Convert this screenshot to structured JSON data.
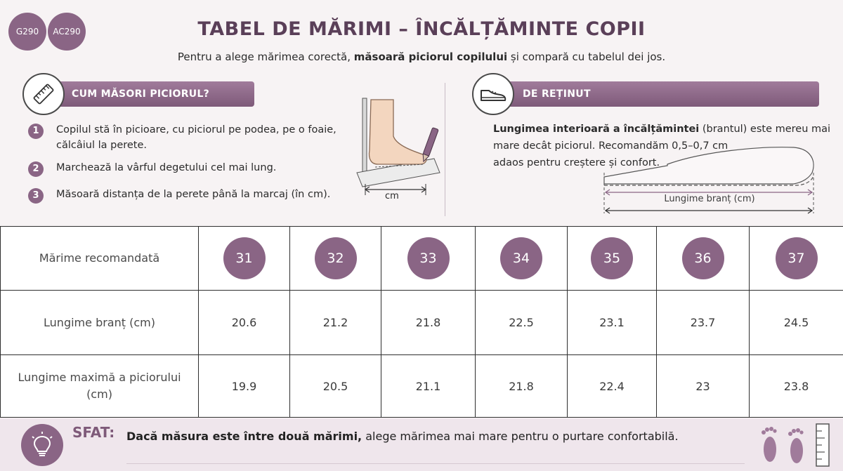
{
  "header": {
    "badges": [
      "G290",
      "AC290"
    ],
    "title": "TABEL DE MĂRIMI – ÎNCĂLȚĂMINTE COPII",
    "subtitle_pre": "Pentru a alege mărimea corectă, ",
    "subtitle_bold": "măsoară piciorul copilului",
    "subtitle_post": " și compară cu tabelul dei jos."
  },
  "measure": {
    "heading": "CUM MĂSORI PICIORUL?",
    "icon": "ruler-icon",
    "steps": [
      {
        "num": "1",
        "line1": "Copilul stă în picioare, cu piciorul pe podea, pe o foaie,",
        "line2": "călcâiul la perete."
      },
      {
        "num": "2",
        "line1": "Marchează la vârful degetului cel mai lung.",
        "line2": ""
      },
      {
        "num": "3",
        "line1": "Măsoară distanța de la perete până la marcaj (în cm).",
        "line2": ""
      }
    ],
    "illustration_unit": "cm"
  },
  "remember": {
    "heading": "DE REȚINUT",
    "icon": "shoe-icon",
    "bold": "Lungimea interioară a încălțămintei",
    "line1_rest": " (brantul) este mereu mai",
    "line2": "mare decât piciorul. Recomandăm 0,5–0,7 cm",
    "line3": "adaos pentru creștere și confort.",
    "insole_label": "Lungime branț (cm)"
  },
  "table": {
    "row_labels": [
      "Mărime recomandată",
      "Lungime branț (cm)",
      "Lungime maximă a piciorului (cm)"
    ],
    "sizes": [
      "31",
      "32",
      "33",
      "34",
      "35",
      "36",
      "37"
    ],
    "insole_length": [
      "20.6",
      "21.2",
      "21.8",
      "22.5",
      "23.1",
      "23.7",
      "24.5"
    ],
    "max_foot_length": [
      "19.9",
      "20.5",
      "21.1",
      "21.8",
      "22.4",
      "23",
      "23.8"
    ]
  },
  "tip": {
    "label": "SFAT:",
    "bold": "Dacă măsura este între două mărimi,",
    "rest": " alege mărimea mai mare pentru o purtare confortabilă.",
    "icons": [
      "lightbulb-icon",
      "footprints-icon",
      "ruler-icon"
    ]
  },
  "colors": {
    "accent": "#8a6585",
    "title": "#5a3f58",
    "banner_top": "#a07b9b",
    "banner_bottom": "#7e5a79",
    "footer_bg": "#efe6ec"
  }
}
